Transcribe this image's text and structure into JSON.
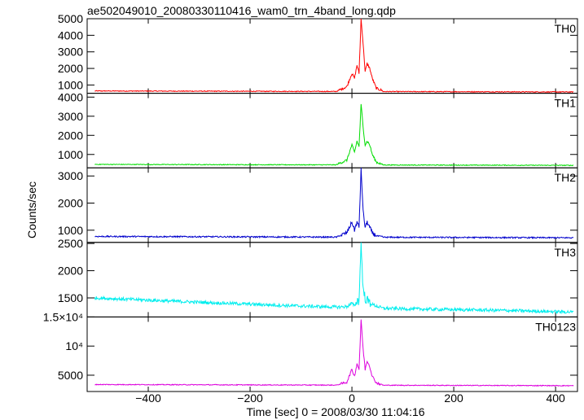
{
  "chart_data": {
    "type": "line",
    "title": "ae502049010_20080330110416_wam0_trn_4band_long.qdp",
    "xlabel": "Time [sec] 0 = 2008/03/30 11:04:16",
    "ylabel": "Counts/sec",
    "xlim": [
      -520,
      443
    ],
    "x_ticks": [
      -400,
      -200,
      0,
      200,
      400
    ],
    "x_tick_labels": [
      "−400",
      "−200",
      "0",
      "200",
      "400"
    ],
    "panels": [
      {
        "name": "TH0",
        "color": "#ff0000",
        "ylim": [
          500,
          5000
        ],
        "y_ticks": [
          1000,
          2000,
          3000,
          4000,
          5000
        ],
        "y_tick_labels": [
          "1000",
          "2000",
          "3000",
          "4000",
          "5000"
        ],
        "baseline": [
          [
            -505,
            640
          ],
          [
            435,
            580
          ]
        ],
        "noise": 25,
        "profile": [
          [
            -30,
            620
          ],
          [
            -10,
            900
          ],
          [
            0,
            1700
          ],
          [
            5,
            1400
          ],
          [
            10,
            2200
          ],
          [
            14,
            1700
          ],
          [
            18,
            5000
          ],
          [
            22,
            3500
          ],
          [
            26,
            1800
          ],
          [
            30,
            2300
          ],
          [
            35,
            2000
          ],
          [
            40,
            1400
          ],
          [
            48,
            800
          ],
          [
            60,
            660
          ]
        ]
      },
      {
        "name": "TH1",
        "color": "#00dd00",
        "ylim": [
          300,
          4200
        ],
        "y_ticks": [
          1000,
          2000,
          3000,
          4000
        ],
        "y_tick_labels": [
          "1000",
          "2000",
          "3000",
          "4000"
        ],
        "baseline": [
          [
            -505,
            480
          ],
          [
            435,
            430
          ]
        ],
        "noise": 20,
        "profile": [
          [
            -30,
            470
          ],
          [
            -10,
            700
          ],
          [
            0,
            1500
          ],
          [
            5,
            1100
          ],
          [
            10,
            1700
          ],
          [
            14,
            1400
          ],
          [
            18,
            3650
          ],
          [
            22,
            2400
          ],
          [
            26,
            1500
          ],
          [
            30,
            1700
          ],
          [
            35,
            1500
          ],
          [
            40,
            1000
          ],
          [
            48,
            600
          ],
          [
            60,
            480
          ]
        ]
      },
      {
        "name": "TH2",
        "color": "#0000cc",
        "ylim": [
          550,
          3300
        ],
        "y_ticks": [
          1000,
          2000,
          3000
        ],
        "y_tick_labels": [
          "1000",
          "2000",
          "3000"
        ],
        "baseline": [
          [
            -505,
            770
          ],
          [
            435,
            720
          ]
        ],
        "noise": 25,
        "profile": [
          [
            -30,
            750
          ],
          [
            -10,
            900
          ],
          [
            0,
            1300
          ],
          [
            5,
            1000
          ],
          [
            10,
            1300
          ],
          [
            14,
            1100
          ],
          [
            18,
            3280
          ],
          [
            22,
            1700
          ],
          [
            26,
            1100
          ],
          [
            30,
            1300
          ],
          [
            35,
            1100
          ],
          [
            40,
            900
          ],
          [
            48,
            790
          ],
          [
            60,
            760
          ]
        ]
      },
      {
        "name": "TH3",
        "color": "#00eeee",
        "ylim": [
          1150,
          2520
        ],
        "y_ticks": [
          1500,
          2000,
          2500
        ],
        "y_tick_labels": [
          "1500",
          "2000",
          "2500"
        ],
        "baseline": [
          [
            -505,
            1500
          ],
          [
            -300,
            1420
          ],
          [
            -100,
            1350
          ],
          [
            100,
            1300
          ],
          [
            300,
            1270
          ],
          [
            435,
            1240
          ]
        ],
        "noise": 30,
        "profile": [
          [
            -30,
            1330
          ],
          [
            -10,
            1340
          ],
          [
            0,
            1400
          ],
          [
            5,
            1350
          ],
          [
            10,
            1450
          ],
          [
            14,
            1450
          ],
          [
            18,
            2520
          ],
          [
            22,
            1650
          ],
          [
            26,
            1500
          ],
          [
            30,
            1450
          ],
          [
            40,
            1380
          ],
          [
            60,
            1310
          ]
        ]
      },
      {
        "name": "TH0123",
        "color": "#dd00dd",
        "ylim": [
          2200,
          15000
        ],
        "y_ticks": [
          5000,
          10000,
          15000
        ],
        "y_tick_labels": [
          "5000",
          "10⁴",
          "1.5×10⁴"
        ],
        "baseline": [
          [
            -505,
            3400
          ],
          [
            435,
            3200
          ]
        ],
        "noise": 70,
        "profile": [
          [
            -30,
            3300
          ],
          [
            -10,
            3800
          ],
          [
            0,
            6000
          ],
          [
            5,
            4800
          ],
          [
            10,
            7000
          ],
          [
            14,
            6000
          ],
          [
            18,
            14500
          ],
          [
            22,
            9500
          ],
          [
            26,
            6000
          ],
          [
            30,
            7500
          ],
          [
            35,
            6500
          ],
          [
            40,
            4800
          ],
          [
            48,
            3700
          ],
          [
            60,
            3350
          ]
        ]
      }
    ]
  }
}
